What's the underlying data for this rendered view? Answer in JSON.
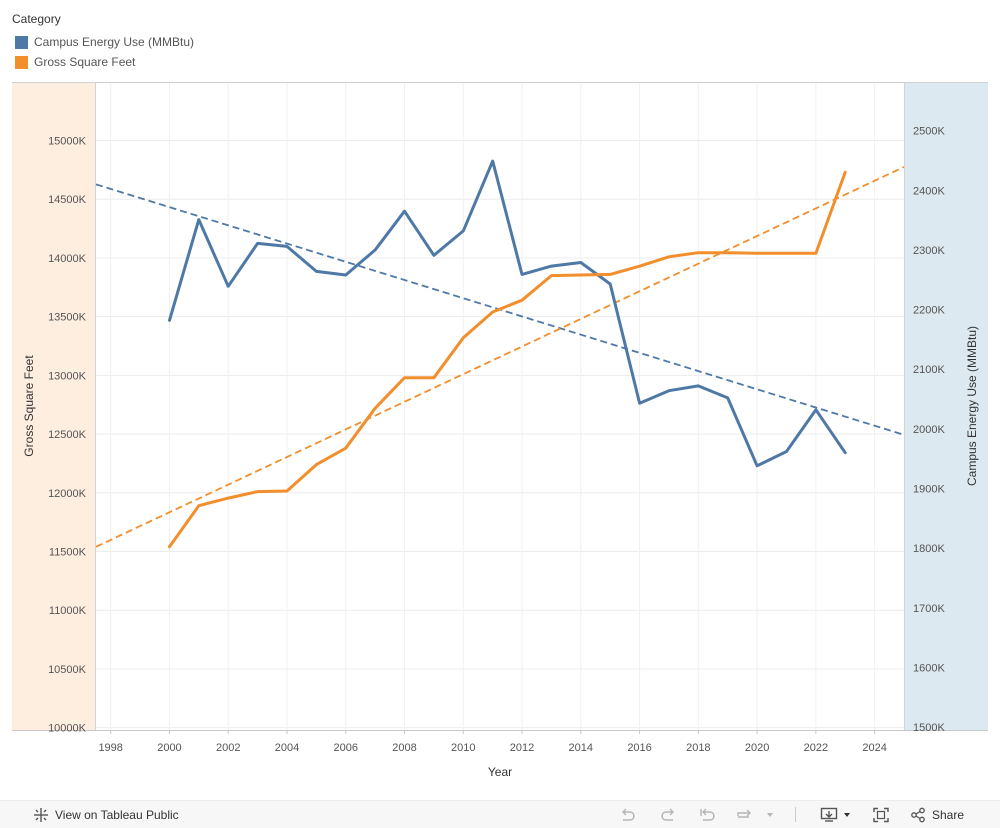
{
  "legend": {
    "title": "Category",
    "items": [
      {
        "label": "Campus Energy Use (MMBtu)",
        "color": "#4e79a7"
      },
      {
        "label": "Gross Square Feet",
        "color": "#f28e2b"
      }
    ]
  },
  "chart_data": {
    "type": "line",
    "xlabel": "Year",
    "ylabel_left": "Gross Square Feet",
    "ylabel_right": "Campus Energy Use (MMBtu)",
    "xlim": [
      1997.5,
      2025.0
    ],
    "x_ticks": [
      "1998",
      "2000",
      "2002",
      "2004",
      "2006",
      "2008",
      "2010",
      "2012",
      "2014",
      "2016",
      "2018",
      "2020",
      "2022",
      "2024"
    ],
    "left_axis": {
      "range": [
        9980,
        15490
      ],
      "ticks": [
        10000,
        10500,
        11000,
        11500,
        12000,
        12500,
        13000,
        13500,
        14000,
        14500,
        15000
      ],
      "tick_labels": [
        "10000K",
        "10500K",
        "11000K",
        "11500K",
        "12000K",
        "12500K",
        "13000K",
        "13500K",
        "14000K",
        "14500K",
        "15000K"
      ]
    },
    "right_axis": {
      "range": [
        1495,
        2580
      ],
      "ticks": [
        1500,
        1600,
        1700,
        1800,
        1900,
        2000,
        2100,
        2200,
        2300,
        2400,
        2500
      ],
      "tick_labels": [
        "1500K",
        "1600K",
        "1700K",
        "1800K",
        "1900K",
        "2000K",
        "2100K",
        "2200K",
        "2300K",
        "2400K",
        "2500K"
      ]
    },
    "series": [
      {
        "name": "Campus Energy Use (MMBtu)",
        "axis": "right",
        "color": "#4e79a7",
        "x": [
          2000,
          2001,
          2002,
          2003,
          2004,
          2005,
          2006,
          2007,
          2008,
          2009,
          2010,
          2011,
          2012,
          2013,
          2014,
          2015,
          2016,
          2017,
          2018,
          2019,
          2020,
          2021,
          2022,
          2023
        ],
        "values": [
          2182,
          2351,
          2239,
          2311,
          2306,
          2264,
          2258,
          2300,
          2365,
          2291,
          2332,
          2449,
          2259,
          2273,
          2279,
          2243,
          2043,
          2064,
          2072,
          2052,
          1938,
          1962,
          2032,
          1960
        ],
        "trend": [
          2410,
          1990
        ]
      },
      {
        "name": "Gross Square Feet",
        "axis": "left",
        "color": "#f28e2b",
        "x": [
          2000,
          2001,
          2002,
          2003,
          2004,
          2005,
          2006,
          2007,
          2008,
          2009,
          2010,
          2011,
          2012,
          2013,
          2014,
          2015,
          2016,
          2017,
          2018,
          2019,
          2020,
          2021,
          2022,
          2023
        ],
        "values": [
          11540,
          11890,
          11955,
          12010,
          12015,
          12240,
          12380,
          12720,
          12980,
          12980,
          13320,
          13540,
          13640,
          13850,
          13855,
          13860,
          13930,
          14010,
          14045,
          14045,
          14040,
          14040,
          14040,
          14730
        ],
        "trend": [
          11540,
          14775
        ]
      }
    ]
  },
  "toolbar": {
    "view_label": "View on Tableau Public",
    "share_label": "Share"
  }
}
